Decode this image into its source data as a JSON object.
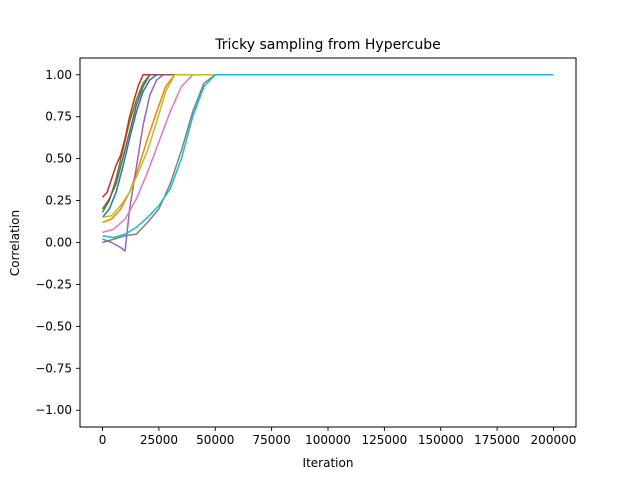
{
  "chart_data": {
    "type": "line",
    "title": "Tricky sampling from Hypercube",
    "xlabel": "Iteration",
    "ylabel": "Correlation",
    "xlim": [
      -10000,
      210000
    ],
    "ylim": [
      -1.1,
      1.1
    ],
    "xticks": [
      0,
      25000,
      50000,
      75000,
      100000,
      125000,
      150000,
      175000,
      200000
    ],
    "yticks": [
      -1.0,
      -0.75,
      -0.5,
      -0.25,
      0.0,
      0.25,
      0.5,
      0.75,
      1.0
    ],
    "xtick_labels": [
      "0",
      "25000",
      "50000",
      "75000",
      "100000",
      "125000",
      "150000",
      "175000",
      "200000"
    ],
    "ytick_labels": [
      "−1.00",
      "−0.75",
      "−0.50",
      "−0.25",
      "0.00",
      "0.25",
      "0.50",
      "0.75",
      "1.00"
    ],
    "grid": false,
    "legend": "none",
    "series": [
      {
        "color": "#1f77b4",
        "x": [
          0,
          3000,
          6000,
          9000,
          12000,
          15000,
          18000,
          21000,
          24000,
          200000
        ],
        "y": [
          0.15,
          0.2,
          0.3,
          0.45,
          0.62,
          0.78,
          0.9,
          0.97,
          1.0,
          1.0
        ]
      },
      {
        "color": "#ff7f0e",
        "x": [
          0,
          4000,
          8000,
          12000,
          16000,
          20000,
          24000,
          28000,
          32000,
          200000
        ],
        "y": [
          0.12,
          0.14,
          0.2,
          0.3,
          0.45,
          0.62,
          0.78,
          0.93,
          1.0,
          1.0
        ]
      },
      {
        "color": "#2ca02c",
        "x": [
          0,
          3000,
          6000,
          9000,
          12000,
          15000,
          18000,
          21000,
          200000
        ],
        "y": [
          0.18,
          0.25,
          0.38,
          0.55,
          0.72,
          0.85,
          0.95,
          1.0,
          1.0
        ]
      },
      {
        "color": "#d62728",
        "x": [
          0,
          2000,
          4000,
          6000,
          8000,
          10000,
          12000,
          14000,
          16000,
          18000,
          200000
        ],
        "y": [
          0.27,
          0.3,
          0.38,
          0.46,
          0.52,
          0.62,
          0.75,
          0.85,
          0.94,
          1.0,
          1.0
        ]
      },
      {
        "color": "#9467bd",
        "x": [
          0,
          4000,
          8000,
          10000,
          12000,
          15000,
          18000,
          21000,
          24000,
          27000,
          200000
        ],
        "y": [
          0.02,
          0.0,
          -0.03,
          -0.05,
          0.2,
          0.45,
          0.7,
          0.88,
          0.97,
          1.0,
          1.0
        ]
      },
      {
        "color": "#8c564b",
        "x": [
          0,
          3000,
          6000,
          9000,
          12000,
          15000,
          18000,
          21000,
          200000
        ],
        "y": [
          0.2,
          0.26,
          0.35,
          0.5,
          0.66,
          0.82,
          0.93,
          1.0,
          1.0
        ]
      },
      {
        "color": "#e377c2",
        "x": [
          0,
          5000,
          10000,
          15000,
          20000,
          25000,
          30000,
          35000,
          40000,
          200000
        ],
        "y": [
          0.06,
          0.08,
          0.14,
          0.26,
          0.42,
          0.6,
          0.78,
          0.93,
          1.0,
          1.0
        ]
      },
      {
        "color": "#7f7f7f",
        "x": [
          0,
          5000,
          10000,
          15000,
          20000,
          25000,
          30000,
          35000,
          40000,
          45000,
          50000,
          200000
        ],
        "y": [
          0.0,
          0.02,
          0.04,
          0.05,
          0.12,
          0.2,
          0.35,
          0.55,
          0.78,
          0.95,
          1.0,
          1.0
        ]
      },
      {
        "color": "#bcbd22",
        "x": [
          0,
          4000,
          8000,
          12000,
          16000,
          20000,
          24000,
          28000,
          32000,
          200000
        ],
        "y": [
          0.15,
          0.16,
          0.22,
          0.3,
          0.42,
          0.55,
          0.72,
          0.9,
          1.0,
          1.0
        ]
      },
      {
        "color": "#17becf",
        "x": [
          0,
          5000,
          10000,
          15000,
          20000,
          25000,
          30000,
          35000,
          40000,
          45000,
          50000,
          200000
        ],
        "y": [
          0.04,
          0.03,
          0.05,
          0.09,
          0.15,
          0.22,
          0.32,
          0.5,
          0.75,
          0.93,
          1.0,
          1.0
        ]
      }
    ]
  }
}
